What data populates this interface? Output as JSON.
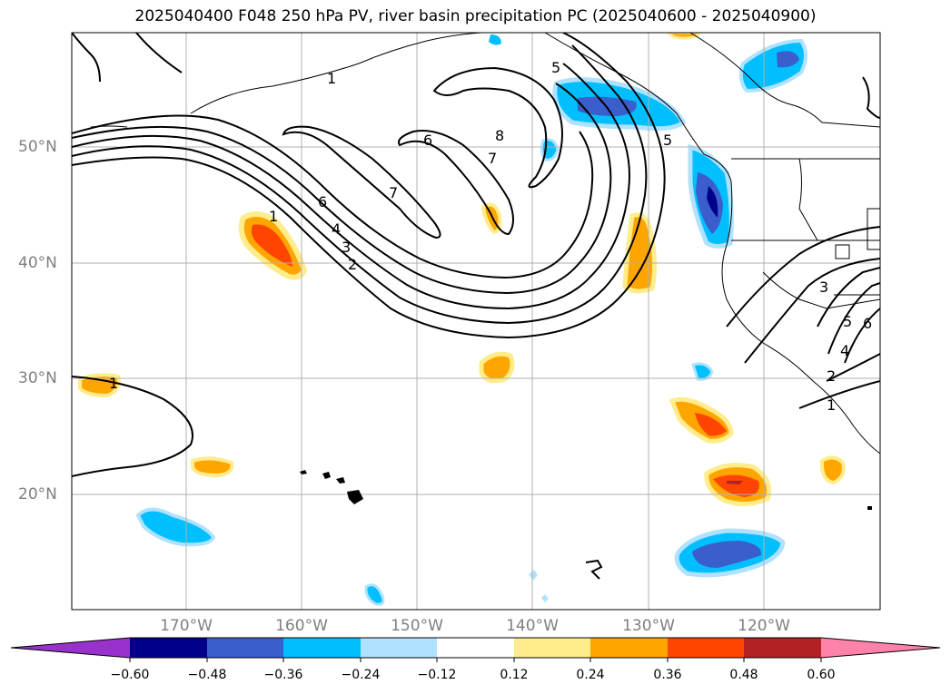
{
  "title": "2025040400 F048 250 hPa PV, river basin precipitation PC (2025040600 - 2025040900)",
  "lat_labels": [
    "50°N",
    "40°N",
    "30°N",
    "20°N"
  ],
  "lon_labels": [
    "170°W",
    "160°W",
    "150°W",
    "140°W",
    "130°W",
    "120°W"
  ],
  "contour_labels": [
    "5",
    "1",
    "8",
    "6",
    "7",
    "1",
    "6",
    "7",
    "4",
    "3",
    "2",
    "1",
    "5",
    "3",
    "4",
    "2",
    "1",
    "5",
    "6"
  ],
  "colorbar": {
    "tick_labels": [
      "−0.60",
      "−0.48",
      "−0.36",
      "−0.24",
      "−0.12",
      "0.12",
      "0.24",
      "0.36",
      "0.48",
      "0.60"
    ],
    "colors": [
      "#9932CC",
      "#00008B",
      "#3A5FCD",
      "#00BFFF",
      "#B0E2FF",
      "#FFFFFF",
      "#FFEC8B",
      "#FFA500",
      "#FF4500",
      "#B22222",
      "#FF82AB"
    ]
  },
  "colors": {
    "pv_contour": "#000000",
    "coastline": "#000000",
    "grid": "#b0b0b0",
    "axis_label": "#7f7f7f"
  }
}
